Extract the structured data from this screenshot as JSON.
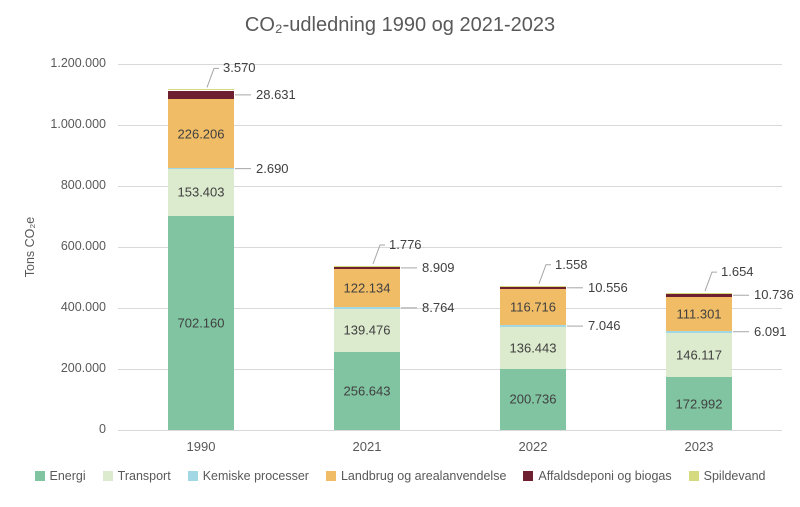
{
  "chart_data": {
    "type": "bar",
    "subtype": "stacked",
    "title": "CO₂-udledning 1990 og 2021-2023",
    "ylabel": "Tons CO₂e",
    "xlabel": "",
    "ylim": [
      0,
      1200000
    ],
    "yticks": [
      0,
      200000,
      400000,
      600000,
      800000,
      1000000,
      1200000
    ],
    "ytick_labels": [
      "0",
      "200.000",
      "400.000",
      "600.000",
      "800.000",
      "1.000.000",
      "1.200.000"
    ],
    "categories": [
      "1990",
      "2021",
      "2022",
      "2023"
    ],
    "series": [
      {
        "name": "Energi",
        "color": "#80c4a1",
        "label_mode": "inside",
        "values": [
          702160,
          256643,
          200736,
          172992
        ],
        "labels": [
          "702.160",
          "256.643",
          "200.736",
          "172.992"
        ]
      },
      {
        "name": "Transport",
        "color": "#dceacd",
        "label_mode": "inside",
        "values": [
          153403,
          139476,
          136443,
          146117
        ],
        "labels": [
          "153.403",
          "139.476",
          "136.443",
          "146.117"
        ]
      },
      {
        "name": "Kemiske processer",
        "color": "#a2d8e5",
        "label_mode": "callout",
        "values": [
          2690,
          8764,
          7046,
          6091
        ],
        "labels": [
          "2.690",
          "8.764",
          "7.046",
          "6.091"
        ]
      },
      {
        "name": "Landbrug og arealanvendelse",
        "color": "#f1bc66",
        "label_mode": "inside",
        "values": [
          226206,
          122134,
          116716,
          111301
        ],
        "labels": [
          "226.206",
          "122.134",
          "116.716",
          "111.301"
        ]
      },
      {
        "name": "Affaldsdeponi og biogas",
        "color": "#6e2030",
        "label_mode": "callout",
        "values": [
          28631,
          8909,
          10556,
          10736
        ],
        "labels": [
          "28.631",
          "8.909",
          "10.556",
          "10.736"
        ]
      },
      {
        "name": "Spildevand",
        "color": "#d6da7e",
        "label_mode": "callout-top",
        "values": [
          3570,
          1776,
          1558,
          1654
        ],
        "labels": [
          "3.570",
          "1.776",
          "1.558",
          "1.654"
        ]
      }
    ],
    "legend_position": "bottom",
    "grid": true,
    "grid_color": "#d9d9d9",
    "text_color": "#595959",
    "leader_line_color": "#a6a6a6",
    "background_color": "#ffffff"
  }
}
